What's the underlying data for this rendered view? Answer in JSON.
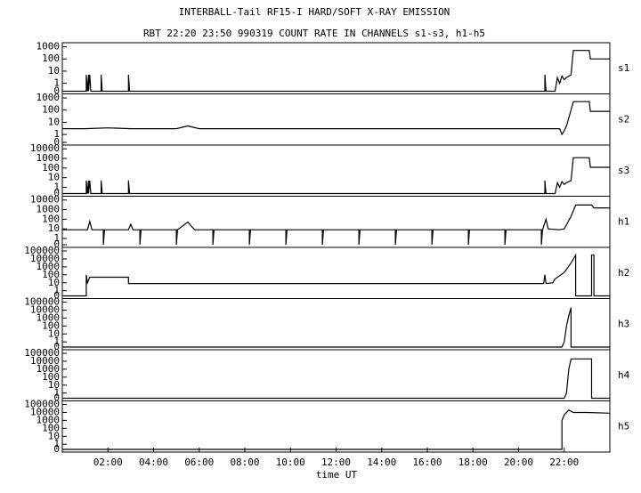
{
  "chart_data": {
    "type": "line",
    "title": "INTERBALL-Tail RF15-I HARD/SOFT X-RAY EMISSION",
    "subtitle": "RBT 22:20 23:50 990319  COUNT RATE IN CHANNELS s1-s3, h1-h5",
    "xlabel": "time UT",
    "xlim": [
      0,
      24
    ],
    "xticks": [
      {
        "value": 2,
        "label": "02:00"
      },
      {
        "value": 4,
        "label": "04:00"
      },
      {
        "value": 6,
        "label": "06:00"
      },
      {
        "value": 8,
        "label": "08:00"
      },
      {
        "value": 10,
        "label": "10:00"
      },
      {
        "value": 12,
        "label": "12:00"
      },
      {
        "value": 14,
        "label": "14:00"
      },
      {
        "value": 16,
        "label": "16:00"
      },
      {
        "value": 18,
        "label": "18:00"
      },
      {
        "value": 20,
        "label": "20:00"
      },
      {
        "value": 22,
        "label": "22:00"
      }
    ],
    "yscale": "log",
    "color": "#000000",
    "panels": [
      {
        "label": "s1",
        "ylim": [
          0,
          1300
        ],
        "yticks": [
          0,
          1,
          10,
          100,
          1000
        ],
        "x": [
          0,
          1.05,
          1.05,
          1.1,
          1.15,
          1.15,
          1.2,
          1.25,
          1.7,
          1.7,
          1.75,
          2.9,
          2.9,
          2.95,
          21.15,
          21.15,
          21.2,
          21.6,
          21.7,
          21.8,
          21.9,
          22.0,
          22.1,
          22.3,
          22.4,
          23.1,
          23.15,
          24
        ],
        "values": [
          0,
          0,
          5,
          0,
          5,
          0,
          5,
          0,
          0,
          5,
          0,
          0,
          5,
          0,
          0,
          5,
          0,
          0,
          3,
          1,
          4,
          2,
          3,
          5,
          500,
          500,
          100,
          100
        ]
      },
      {
        "label": "s2",
        "ylim": [
          0,
          1300
        ],
        "yticks": [
          0,
          1,
          10,
          100,
          1000
        ],
        "x": [
          0,
          1,
          2,
          3,
          4,
          5,
          5.5,
          6,
          7,
          8,
          9,
          10,
          11,
          12,
          13,
          14,
          15,
          16,
          17,
          18,
          19,
          20,
          21,
          21.5,
          21.8,
          21.9,
          22.0,
          22.1,
          22.3,
          22.4,
          23.1,
          23.15,
          24
        ],
        "values": [
          3,
          3,
          3.5,
          3,
          3,
          3,
          5,
          3,
          3,
          3,
          3,
          3,
          3,
          3,
          3,
          3,
          3,
          3,
          3,
          3,
          3,
          3,
          3,
          3,
          3,
          1,
          2,
          5,
          100,
          500,
          500,
          80,
          80
        ]
      },
      {
        "label": "s3",
        "ylim": [
          0,
          13000
        ],
        "yticks": [
          0,
          1,
          10,
          100,
          1000,
          10000
        ],
        "x": [
          0,
          1.05,
          1.05,
          1.1,
          1.15,
          1.15,
          1.2,
          1.25,
          1.7,
          1.7,
          1.75,
          2.9,
          2.9,
          2.95,
          21.15,
          21.15,
          21.2,
          21.6,
          21.7,
          21.8,
          21.9,
          22.0,
          22.1,
          22.3,
          22.4,
          23.1,
          23.15,
          24
        ],
        "values": [
          0,
          0,
          5,
          0,
          5,
          0,
          5,
          0,
          0,
          5,
          0,
          0,
          5,
          0,
          0,
          5,
          0,
          0,
          3,
          1,
          4,
          2,
          3,
          5,
          1200,
          1200,
          120,
          120
        ]
      },
      {
        "label": "h1",
        "ylim": [
          0,
          13000
        ],
        "yticks": [
          0,
          1,
          10,
          100,
          1000,
          10000
        ],
        "x": [
          0,
          1.1,
          1.2,
          1.3,
          1.8,
          1.8,
          1.85,
          2.9,
          3.0,
          3.1,
          3.4,
          3.4,
          3.45,
          5.0,
          5.0,
          5.05,
          5.5,
          5.8,
          6.6,
          6.6,
          6.65,
          8.2,
          8.2,
          8.25,
          9.8,
          9.8,
          9.85,
          11.4,
          11.4,
          11.45,
          13.0,
          13.0,
          13.05,
          14.6,
          14.6,
          14.65,
          16.2,
          16.2,
          16.25,
          17.8,
          17.8,
          17.85,
          19.4,
          19.4,
          19.45,
          21.0,
          21.0,
          21.05,
          21.2,
          21.3,
          21.8,
          22.0,
          22.3,
          22.5,
          23.2,
          23.3,
          24
        ],
        "values": [
          8,
          8,
          60,
          8,
          8,
          0,
          8,
          8,
          30,
          8,
          8,
          0,
          8,
          8,
          0,
          8,
          50,
          8,
          8,
          0,
          8,
          8,
          0,
          8,
          8,
          0,
          8,
          8,
          0,
          8,
          8,
          0,
          8,
          8,
          0,
          8,
          8,
          0,
          8,
          8,
          0,
          8,
          8,
          0,
          8,
          8,
          0,
          8,
          100,
          10,
          8,
          10,
          200,
          3000,
          3000,
          1500,
          1500
        ]
      },
      {
        "label": "h2",
        "ylim": [
          0,
          130000
        ],
        "yticks": [
          0,
          1,
          10,
          100,
          1000,
          10000,
          100000
        ],
        "x": [
          0,
          1.05,
          1.05,
          1.1,
          1.2,
          2.9,
          2.9,
          21.1,
          21.15,
          21.2,
          21.5,
          21.6,
          22.0,
          22.3,
          22.5,
          22.5,
          22.55,
          23.2,
          23.2,
          23.3,
          23.3,
          24
        ],
        "values": [
          0,
          0,
          100,
          10,
          50,
          50,
          8,
          8,
          100,
          8,
          10,
          30,
          200,
          3000,
          30000,
          0,
          0,
          0,
          30000,
          30000,
          0,
          0
        ]
      },
      {
        "label": "h3",
        "ylim": [
          0,
          130000
        ],
        "yticks": [
          0,
          1,
          10,
          100,
          1000,
          10000,
          100000
        ],
        "x": [
          0,
          21.9,
          22.0,
          22.1,
          22.2,
          22.3,
          22.3,
          24
        ],
        "values": [
          0,
          0,
          1,
          100,
          2000,
          20000,
          0,
          0
        ]
      },
      {
        "label": "h4",
        "ylim": [
          0,
          130000
        ],
        "yticks": [
          0,
          1,
          10,
          100,
          1000,
          10000,
          100000
        ],
        "x": [
          0,
          22.0,
          22.1,
          22.2,
          22.3,
          23.2,
          23.2,
          24
        ],
        "values": [
          0,
          0,
          1,
          1000,
          20000,
          20000,
          0,
          0
        ]
      },
      {
        "label": "h5",
        "ylim": [
          0,
          130000
        ],
        "yticks": [
          0,
          1,
          10,
          100,
          1000,
          10000,
          100000
        ],
        "x": [
          0,
          21.9,
          21.9,
          22.0,
          22.2,
          22.4,
          23.0,
          24
        ],
        "values": [
          0,
          0,
          1000,
          5000,
          20000,
          10000,
          10000,
          8000
        ]
      }
    ]
  }
}
